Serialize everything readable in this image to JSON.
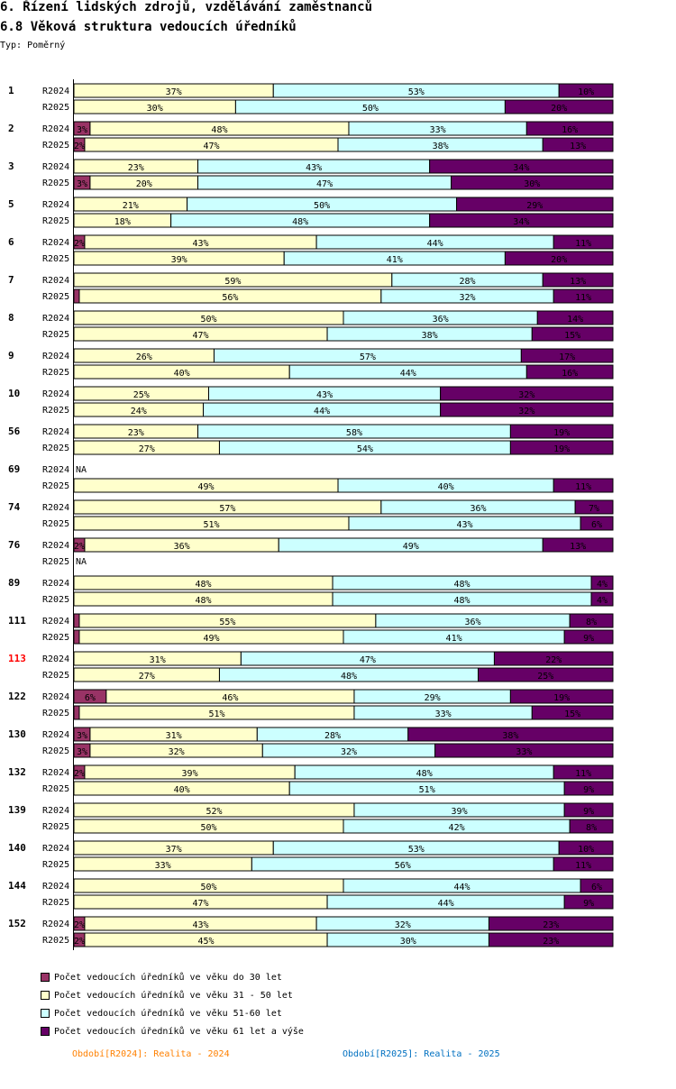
{
  "header": {
    "title": "6. Řízení lidských zdrojů, vzdělávání zaměstnanců",
    "subtitle": "6.8 Věková struktura vedoucích úředníků",
    "type_label": "Typ: Poměrný"
  },
  "colors": {
    "s1": "#993366",
    "s2": "#ffffcc",
    "s3": "#ccffff",
    "s4": "#660066",
    "highlight": "#ff0000",
    "p2024": "#ff8000",
    "p2025": "#0070c0"
  },
  "periods": {
    "p2024": "Období[R2024]: Realita - 2024",
    "p2025": "Období[R2025]: Realita - 2025"
  },
  "chart_data": {
    "type": "bar",
    "orientation": "horizontal",
    "stacked": "percent",
    "series": [
      {
        "name": "Počet vedoucích úředníků ve věku do 30 let"
      },
      {
        "name": "Počet vedoucích úředníků ve věku 31 - 50 let"
      },
      {
        "name": "Počet vedoucích úředníků ve věku 51-60 let"
      },
      {
        "name": "Počet vedoucích úředníků ve věku 61 let a výše"
      }
    ],
    "na_label": "NA",
    "groups": [
      {
        "id": "1",
        "highlight": false,
        "rows": [
          {
            "period": "R2024",
            "values": [
              0,
              37,
              53,
              10
            ]
          },
          {
            "period": "R2025",
            "values": [
              0,
              30,
              50,
              20
            ]
          }
        ]
      },
      {
        "id": "2",
        "highlight": false,
        "rows": [
          {
            "period": "R2024",
            "values": [
              3,
              48,
              33,
              16
            ]
          },
          {
            "period": "R2025",
            "values": [
              2,
              47,
              38,
              13
            ]
          }
        ]
      },
      {
        "id": "3",
        "highlight": false,
        "rows": [
          {
            "period": "R2024",
            "values": [
              0,
              23,
              43,
              34
            ]
          },
          {
            "period": "R2025",
            "values": [
              3,
              20,
              47,
              30
            ]
          }
        ]
      },
      {
        "id": "5",
        "highlight": false,
        "rows": [
          {
            "period": "R2024",
            "values": [
              0,
              21,
              50,
              29
            ]
          },
          {
            "period": "R2025",
            "values": [
              0,
              18,
              48,
              34
            ]
          }
        ]
      },
      {
        "id": "6",
        "highlight": false,
        "rows": [
          {
            "period": "R2024",
            "values": [
              2,
              43,
              44,
              11
            ]
          },
          {
            "period": "R2025",
            "values": [
              0,
              39,
              41,
              20
            ]
          }
        ]
      },
      {
        "id": "7",
        "highlight": false,
        "rows": [
          {
            "period": "R2024",
            "values": [
              0,
              59,
              28,
              13
            ]
          },
          {
            "period": "R2025",
            "values": [
              1,
              56,
              32,
              11
            ]
          }
        ]
      },
      {
        "id": "8",
        "highlight": false,
        "rows": [
          {
            "period": "R2024",
            "values": [
              0,
              50,
              36,
              14
            ]
          },
          {
            "period": "R2025",
            "values": [
              0,
              47,
              38,
              15
            ]
          }
        ]
      },
      {
        "id": "9",
        "highlight": false,
        "rows": [
          {
            "period": "R2024",
            "values": [
              0,
              26,
              57,
              17
            ]
          },
          {
            "period": "R2025",
            "values": [
              0,
              40,
              44,
              16
            ]
          }
        ]
      },
      {
        "id": "10",
        "highlight": false,
        "rows": [
          {
            "period": "R2024",
            "values": [
              0,
              25,
              43,
              32
            ]
          },
          {
            "period": "R2025",
            "values": [
              0,
              24,
              44,
              32
            ]
          }
        ]
      },
      {
        "id": "56",
        "highlight": false,
        "rows": [
          {
            "period": "R2024",
            "values": [
              0,
              23,
              58,
              19
            ]
          },
          {
            "period": "R2025",
            "values": [
              0,
              27,
              54,
              19
            ]
          }
        ]
      },
      {
        "id": "69",
        "highlight": false,
        "rows": [
          {
            "period": "R2024",
            "values": null
          },
          {
            "period": "R2025",
            "values": [
              0,
              49,
              40,
              11
            ]
          }
        ]
      },
      {
        "id": "74",
        "highlight": false,
        "rows": [
          {
            "period": "R2024",
            "values": [
              0,
              57,
              36,
              7
            ]
          },
          {
            "period": "R2025",
            "values": [
              0,
              51,
              43,
              6
            ]
          }
        ]
      },
      {
        "id": "76",
        "highlight": false,
        "rows": [
          {
            "period": "R2024",
            "values": [
              2,
              36,
              49,
              13
            ]
          },
          {
            "period": "R2025",
            "values": null
          }
        ]
      },
      {
        "id": "89",
        "highlight": false,
        "rows": [
          {
            "period": "R2024",
            "values": [
              0,
              48,
              48,
              4
            ]
          },
          {
            "period": "R2025",
            "values": [
              0,
              48,
              48,
              4
            ]
          }
        ]
      },
      {
        "id": "111",
        "highlight": false,
        "rows": [
          {
            "period": "R2024",
            "values": [
              1,
              55,
              36,
              8
            ]
          },
          {
            "period": "R2025",
            "values": [
              1,
              49,
              41,
              9
            ]
          }
        ]
      },
      {
        "id": "113",
        "highlight": true,
        "rows": [
          {
            "period": "R2024",
            "values": [
              0,
              31,
              47,
              22
            ]
          },
          {
            "period": "R2025",
            "values": [
              0,
              27,
              48,
              25
            ]
          }
        ]
      },
      {
        "id": "122",
        "highlight": false,
        "rows": [
          {
            "period": "R2024",
            "values": [
              6,
              46,
              29,
              19
            ]
          },
          {
            "period": "R2025",
            "values": [
              1,
              51,
              33,
              15
            ]
          }
        ]
      },
      {
        "id": "130",
        "highlight": false,
        "rows": [
          {
            "period": "R2024",
            "values": [
              3,
              31,
              28,
              38
            ]
          },
          {
            "period": "R2025",
            "values": [
              3,
              32,
              32,
              33
            ]
          }
        ]
      },
      {
        "id": "132",
        "highlight": false,
        "rows": [
          {
            "period": "R2024",
            "values": [
              2,
              39,
              48,
              11
            ]
          },
          {
            "period": "R2025",
            "values": [
              0,
              40,
              51,
              9
            ]
          }
        ]
      },
      {
        "id": "139",
        "highlight": false,
        "rows": [
          {
            "period": "R2024",
            "values": [
              0,
              52,
              39,
              9
            ]
          },
          {
            "period": "R2025",
            "values": [
              0,
              50,
              42,
              8
            ]
          }
        ]
      },
      {
        "id": "140",
        "highlight": false,
        "rows": [
          {
            "period": "R2024",
            "values": [
              0,
              37,
              53,
              10
            ]
          },
          {
            "period": "R2025",
            "values": [
              0,
              33,
              56,
              11
            ]
          }
        ]
      },
      {
        "id": "144",
        "highlight": false,
        "rows": [
          {
            "period": "R2024",
            "values": [
              0,
              50,
              44,
              6
            ]
          },
          {
            "period": "R2025",
            "values": [
              0,
              47,
              44,
              9
            ]
          }
        ]
      },
      {
        "id": "152",
        "highlight": false,
        "rows": [
          {
            "period": "R2024",
            "values": [
              2,
              43,
              32,
              23
            ]
          },
          {
            "period": "R2025",
            "values": [
              2,
              45,
              30,
              23
            ]
          }
        ]
      }
    ]
  }
}
